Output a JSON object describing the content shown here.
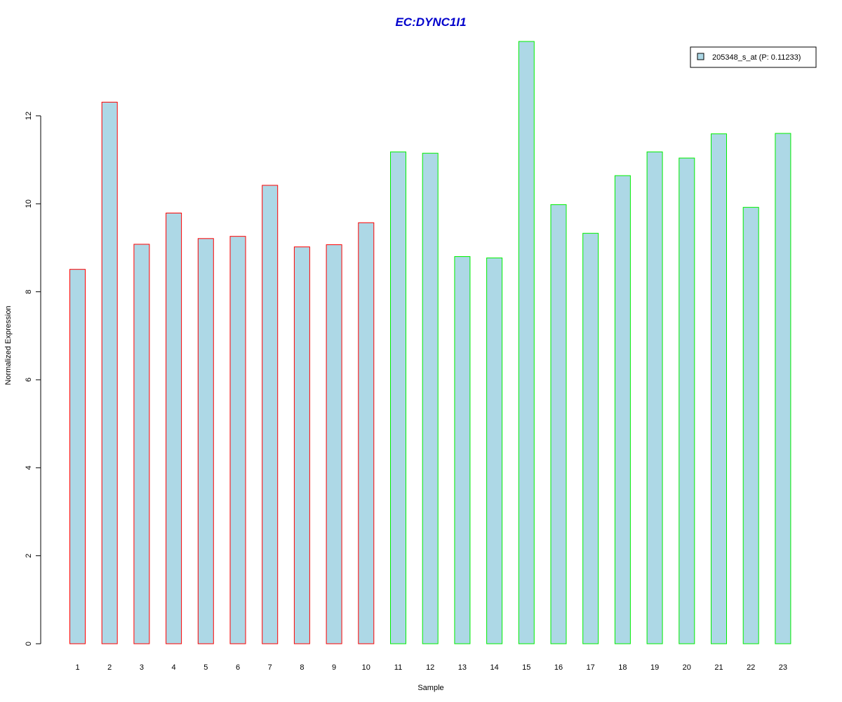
{
  "chart_data": {
    "type": "bar",
    "title": "EC:DYNC1I1",
    "xlabel": "Sample",
    "ylabel": "Normalized Expression",
    "ylim": [
      0,
      13.7
    ],
    "y_ticks": [
      0,
      2,
      4,
      6,
      8,
      10,
      12
    ],
    "categories": [
      "1",
      "2",
      "3",
      "4",
      "5",
      "6",
      "7",
      "8",
      "9",
      "10",
      "11",
      "12",
      "13",
      "14",
      "15",
      "16",
      "17",
      "18",
      "19",
      "20",
      "21",
      "22",
      "23"
    ],
    "series": [
      {
        "name": "205348_s_at (P: 0.11233)",
        "values": [
          8.51,
          12.31,
          9.08,
          9.79,
          9.21,
          9.26,
          10.42,
          9.02,
          9.07,
          9.57,
          11.18,
          11.15,
          8.8,
          8.77,
          13.69,
          9.98,
          9.33,
          10.64,
          11.18,
          11.04,
          11.59,
          9.92,
          11.6
        ],
        "fill": "#add8e6"
      }
    ],
    "bar_border_colors": [
      "#ff0000",
      "#ff0000",
      "#ff0000",
      "#ff0000",
      "#ff0000",
      "#ff0000",
      "#ff0000",
      "#ff0000",
      "#ff0000",
      "#ff0000",
      "#00ee00",
      "#00ee00",
      "#00ee00",
      "#00ee00",
      "#00ee00",
      "#00ee00",
      "#00ee00",
      "#00ee00",
      "#00ee00",
      "#00ee00",
      "#00ee00",
      "#00ee00",
      "#00ee00"
    ],
    "title_color": "#0000cc",
    "legend": {
      "label": "205348_s_at (P: 0.11233)",
      "position": "top-right"
    },
    "grid": false
  }
}
